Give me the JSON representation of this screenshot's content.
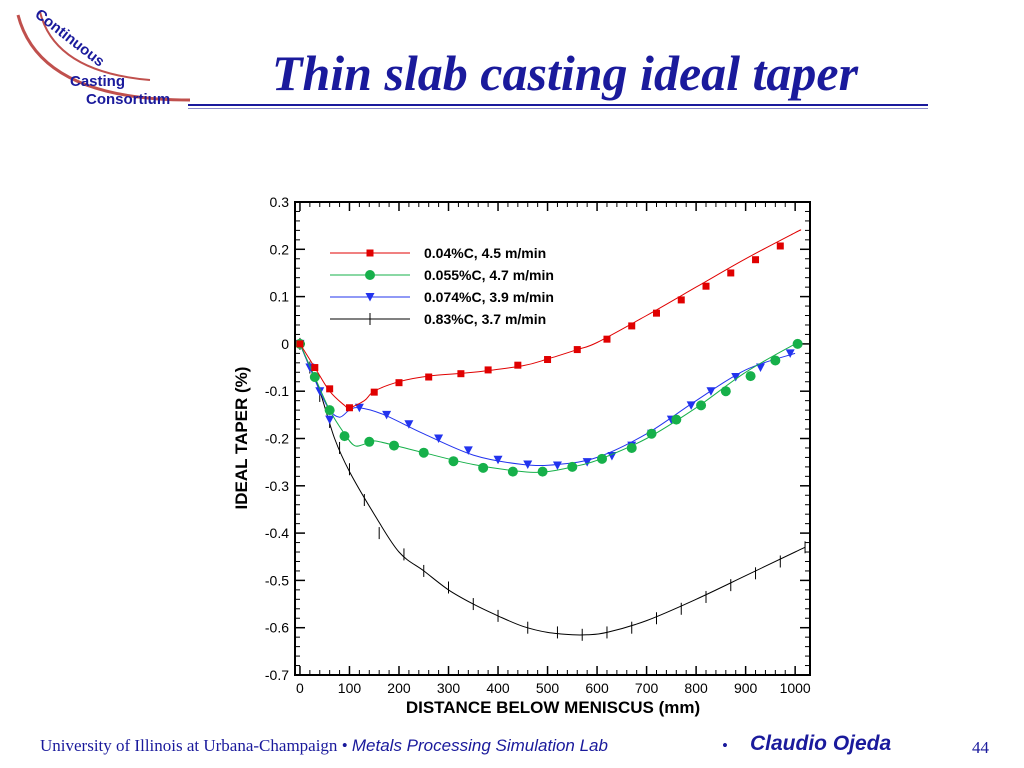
{
  "logo": {
    "lines": [
      "Continuous",
      "Casting",
      "Consortium"
    ],
    "colors": {
      "text": "#1a1a9c",
      "arc": "#c0504d"
    }
  },
  "slide": {
    "title": "Thin slab casting ideal taper",
    "footer_university": "University of Illinois at Urbana-Champaign",
    "footer_sep1": " • ",
    "footer_lab": "Metals Processing Simulation Lab",
    "footer_sep2": "•",
    "footer_author": "Claudio Ojeda",
    "page_number": "44"
  },
  "chart_data": {
    "type": "line",
    "title": "",
    "xlabel": "DISTANCE BELOW MENISCUS (mm)",
    "ylabel": "IDEAL TAPER (%)",
    "xlim": [
      -10,
      1030
    ],
    "ylim": [
      -0.7,
      0.3
    ],
    "xticks": [
      0,
      100,
      200,
      300,
      400,
      500,
      600,
      700,
      800,
      900,
      1000
    ],
    "yticks": [
      0.3,
      0.2,
      0.1,
      0,
      -0.1,
      -0.2,
      -0.3,
      -0.4,
      -0.5,
      -0.6,
      -0.7
    ],
    "ytick_labels": [
      "0.3",
      "0.2",
      "0.1",
      "0",
      "-0.1",
      "-0.2",
      "-0.3",
      "-0.4",
      "-0.5",
      "-0.6",
      "-0.7"
    ],
    "legend_position": "top-left",
    "series": [
      {
        "name": "0.04%C, 4.5 m/min",
        "color": "#e00000",
        "marker": "square",
        "line": [
          [
            0,
            0
          ],
          [
            30,
            -0.05
          ],
          [
            60,
            -0.1
          ],
          [
            90,
            -0.13
          ],
          [
            100,
            -0.135
          ],
          [
            130,
            -0.12
          ],
          [
            150,
            -0.1
          ],
          [
            200,
            -0.08
          ],
          [
            260,
            -0.068
          ],
          [
            350,
            -0.06
          ],
          [
            450,
            -0.046
          ],
          [
            500,
            -0.032
          ],
          [
            560,
            -0.012
          ],
          [
            600,
            0.003
          ],
          [
            700,
            0.06
          ],
          [
            800,
            0.12
          ],
          [
            900,
            0.18
          ],
          [
            1000,
            0.235
          ],
          [
            1010,
            0.24
          ]
        ],
        "points": [
          [
            0,
            0
          ],
          [
            30,
            -0.05
          ],
          [
            60,
            -0.095
          ],
          [
            100,
            -0.135
          ],
          [
            150,
            -0.102
          ],
          [
            200,
            -0.082
          ],
          [
            260,
            -0.07
          ],
          [
            325,
            -0.063
          ],
          [
            380,
            -0.055
          ],
          [
            440,
            -0.045
          ],
          [
            500,
            -0.033
          ],
          [
            560,
            -0.012
          ],
          [
            620,
            0.01
          ],
          [
            670,
            0.038
          ],
          [
            720,
            0.065
          ],
          [
            770,
            0.093
          ],
          [
            820,
            0.122
          ],
          [
            870,
            0.15
          ],
          [
            920,
            0.178
          ],
          [
            970,
            0.207
          ]
        ]
      },
      {
        "name": "0.055%C, 4.7 m/min",
        "color": "#16b04a",
        "marker": "circle",
        "line": [
          [
            0,
            0
          ],
          [
            30,
            -0.07
          ],
          [
            60,
            -0.14
          ],
          [
            90,
            -0.19
          ],
          [
            110,
            -0.215
          ],
          [
            130,
            -0.212
          ],
          [
            150,
            -0.205
          ],
          [
            200,
            -0.217
          ],
          [
            250,
            -0.23
          ],
          [
            350,
            -0.255
          ],
          [
            450,
            -0.27
          ],
          [
            500,
            -0.27
          ],
          [
            550,
            -0.26
          ],
          [
            600,
            -0.246
          ],
          [
            700,
            -0.2
          ],
          [
            800,
            -0.135
          ],
          [
            900,
            -0.06
          ],
          [
            1000,
            0
          ]
        ],
        "points": [
          [
            0,
            0
          ],
          [
            30,
            -0.07
          ],
          [
            60,
            -0.14
          ],
          [
            90,
            -0.195
          ],
          [
            140,
            -0.207
          ],
          [
            190,
            -0.215
          ],
          [
            250,
            -0.23
          ],
          [
            310,
            -0.248
          ],
          [
            370,
            -0.262
          ],
          [
            430,
            -0.27
          ],
          [
            490,
            -0.27
          ],
          [
            550,
            -0.26
          ],
          [
            610,
            -0.243
          ],
          [
            670,
            -0.22
          ],
          [
            710,
            -0.19
          ],
          [
            760,
            -0.16
          ],
          [
            810,
            -0.13
          ],
          [
            860,
            -0.1
          ],
          [
            910,
            -0.068
          ],
          [
            960,
            -0.035
          ],
          [
            1005,
            0
          ]
        ]
      },
      {
        "name": "0.074%C, 3.9 m/min",
        "color": "#2233ee",
        "marker": "triangle-down",
        "line": [
          [
            0,
            0
          ],
          [
            20,
            -0.05
          ],
          [
            40,
            -0.1
          ],
          [
            60,
            -0.14
          ],
          [
            80,
            -0.155
          ],
          [
            100,
            -0.14
          ],
          [
            120,
            -0.135
          ],
          [
            170,
            -0.15
          ],
          [
            250,
            -0.19
          ],
          [
            350,
            -0.235
          ],
          [
            450,
            -0.255
          ],
          [
            520,
            -0.255
          ],
          [
            600,
            -0.24
          ],
          [
            700,
            -0.19
          ],
          [
            800,
            -0.12
          ],
          [
            900,
            -0.055
          ],
          [
            1000,
            -0.02
          ]
        ],
        "points": [
          [
            0,
            0
          ],
          [
            20,
            -0.05
          ],
          [
            40,
            -0.1
          ],
          [
            60,
            -0.16
          ],
          [
            120,
            -0.135
          ],
          [
            175,
            -0.15
          ],
          [
            220,
            -0.17
          ],
          [
            280,
            -0.2
          ],
          [
            340,
            -0.225
          ],
          [
            400,
            -0.245
          ],
          [
            460,
            -0.255
          ],
          [
            520,
            -0.257
          ],
          [
            580,
            -0.25
          ],
          [
            630,
            -0.237
          ],
          [
            670,
            -0.215
          ],
          [
            710,
            -0.19
          ],
          [
            750,
            -0.16
          ],
          [
            790,
            -0.13
          ],
          [
            830,
            -0.1
          ],
          [
            880,
            -0.07
          ],
          [
            930,
            -0.05
          ],
          [
            990,
            -0.02
          ]
        ]
      },
      {
        "name": "0.83%C, 3.7 m/min",
        "color": "#000000",
        "marker": "vertical-tick",
        "line": [
          [
            0,
            0
          ],
          [
            20,
            -0.05
          ],
          [
            40,
            -0.1
          ],
          [
            70,
            -0.2
          ],
          [
            100,
            -0.27
          ],
          [
            150,
            -0.36
          ],
          [
            200,
            -0.44
          ],
          [
            250,
            -0.48
          ],
          [
            300,
            -0.52
          ],
          [
            350,
            -0.55
          ],
          [
            400,
            -0.575
          ],
          [
            450,
            -0.597
          ],
          [
            500,
            -0.61
          ],
          [
            550,
            -0.615
          ],
          [
            580,
            -0.615
          ],
          [
            620,
            -0.61
          ],
          [
            700,
            -0.585
          ],
          [
            800,
            -0.54
          ],
          [
            900,
            -0.49
          ],
          [
            1000,
            -0.44
          ],
          [
            1020,
            -0.43
          ]
        ],
        "points": [
          [
            0,
            0
          ],
          [
            20,
            -0.05
          ],
          [
            40,
            -0.11
          ],
          [
            60,
            -0.165
          ],
          [
            80,
            -0.22
          ],
          [
            100,
            -0.265
          ],
          [
            130,
            -0.33
          ],
          [
            160,
            -0.4
          ],
          [
            210,
            -0.445
          ],
          [
            250,
            -0.48
          ],
          [
            300,
            -0.515
          ],
          [
            350,
            -0.55
          ],
          [
            400,
            -0.575
          ],
          [
            460,
            -0.6
          ],
          [
            520,
            -0.61
          ],
          [
            570,
            -0.615
          ],
          [
            620,
            -0.61
          ],
          [
            670,
            -0.6
          ],
          [
            720,
            -0.58
          ],
          [
            770,
            -0.56
          ],
          [
            820,
            -0.535
          ],
          [
            870,
            -0.51
          ],
          [
            920,
            -0.485
          ],
          [
            970,
            -0.46
          ],
          [
            1020,
            -0.43
          ]
        ]
      }
    ]
  }
}
